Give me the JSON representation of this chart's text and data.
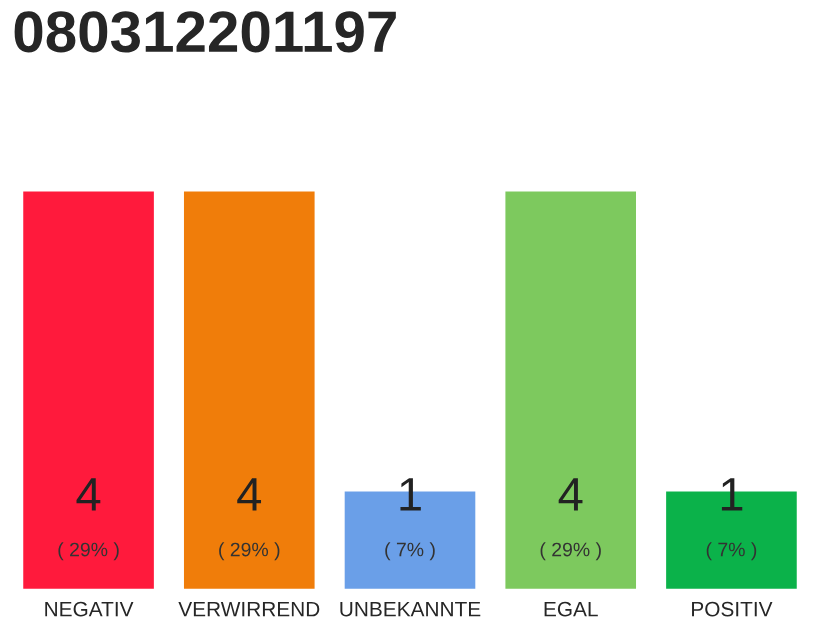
{
  "chart_data": {
    "type": "bar",
    "title": "080312201197",
    "categories": [
      "NEGATIV",
      "VERWIRREND",
      "UNBEKANNTE",
      "EGAL",
      "POSITIV"
    ],
    "values": [
      4,
      4,
      1,
      4,
      1
    ],
    "colors": [
      "#ff1a3c",
      "#f07d0a",
      "#6a9fe8",
      "#7dc95e",
      "#0bb24a"
    ],
    "data_labels": true,
    "annotations": [
      "( 29% )",
      "( 29% )",
      "( 7% )",
      "( 29% )",
      "( 7% )"
    ]
  }
}
